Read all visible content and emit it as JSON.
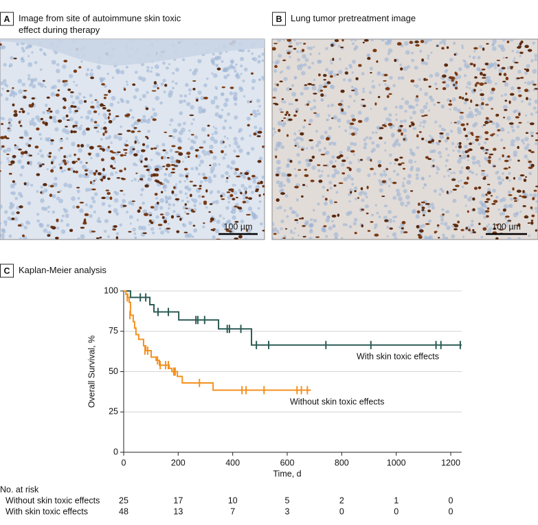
{
  "panels": [
    {
      "letter": "A",
      "caption": [
        "Image from site of autoimmune skin toxic",
        "effect during therapy"
      ],
      "scale_bar": "100 µm"
    },
    {
      "letter": "B",
      "caption": [
        "Lung tumor pretreatment image"
      ],
      "scale_bar": "100 µm"
    },
    {
      "letter": "C",
      "caption": [
        "Kaplan-Meier analysis"
      ]
    }
  ],
  "chart_data": {
    "type": "step",
    "x_label": "Time, d",
    "y_label": "Overall Survival, %",
    "xlim": [
      0,
      1200
    ],
    "ylim": [
      0,
      100
    ],
    "xticks": [
      0,
      200,
      400,
      600,
      800,
      1000,
      1200
    ],
    "yticks": [
      0,
      25,
      50,
      75,
      100
    ],
    "grid": true,
    "series": [
      {
        "name": "With skin toxic effects",
        "color": "#2b5b55",
        "x": [
          0,
          25,
          96,
          111,
          202,
          348,
          469,
          1240
        ],
        "values": [
          100,
          96,
          91.5,
          87,
          82,
          76.5,
          66.5,
          66.5
        ],
        "censored_x": [
          61,
          81,
          126,
          164,
          265,
          272,
          297,
          380,
          388,
          430,
          487,
          532,
          742,
          907,
          1146,
          1164,
          1235
        ],
        "censored_values": [
          96,
          96,
          87,
          87,
          82,
          82,
          82,
          76.5,
          76.5,
          76.5,
          66.5,
          66.5,
          66.5,
          66.5,
          66.5,
          66.5,
          66.5
        ]
      },
      {
        "name": "Without skin toxic effects",
        "color": "#f4901e",
        "x": [
          0,
          8,
          15,
          20,
          25,
          35,
          40,
          45,
          55,
          73,
          81,
          101,
          119,
          131,
          167,
          177,
          197,
          215,
          328,
          687
        ],
        "values": [
          100,
          98,
          96,
          93,
          85,
          81,
          77,
          73,
          70,
          66,
          63,
          59,
          57,
          54,
          52,
          50,
          47,
          43,
          38.5,
          38.5
        ],
        "censored_x": [
          13,
          23,
          78,
          88,
          124,
          134,
          154,
          164,
          184,
          189,
          278,
          434,
          449,
          515,
          636,
          652,
          674
        ],
        "censored_values": [
          96,
          85,
          63,
          63,
          57,
          54,
          54,
          54,
          50,
          50,
          43,
          38.5,
          38.5,
          38.5,
          38.5,
          38.5,
          38.5
        ]
      }
    ]
  },
  "risk_table": {
    "title": "No. at risk",
    "rows": [
      {
        "label": "Without skin toxic effects",
        "counts": [
          25,
          17,
          10,
          5,
          2,
          1,
          0
        ]
      },
      {
        "label": "With skin toxic effects",
        "counts": [
          48,
          13,
          7,
          3,
          0,
          0,
          0
        ]
      }
    ]
  }
}
